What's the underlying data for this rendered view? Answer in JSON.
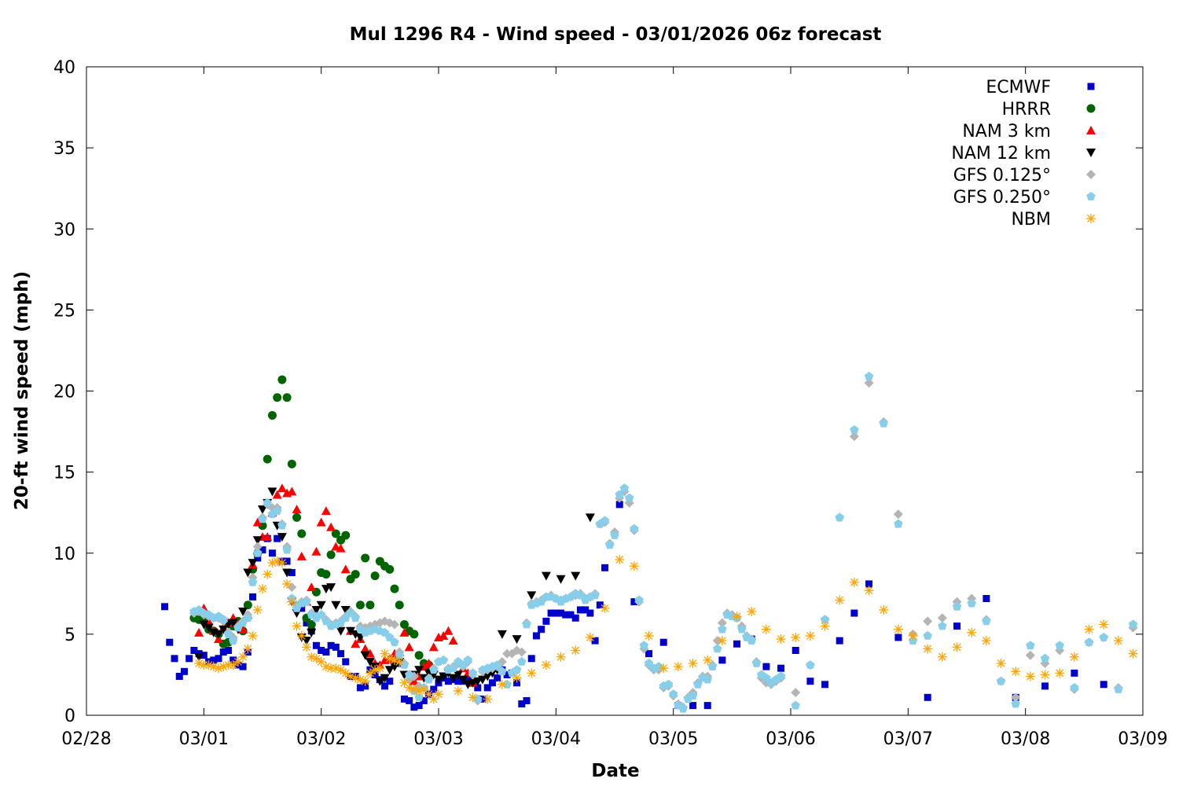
{
  "chart_data": {
    "type": "scatter",
    "title": "Mul 1296 R4 - Wind speed - 03/01/2026 06z forecast",
    "xlabel": "Date",
    "ylabel": "20-ft wind speed (mph)",
    "xlim": [
      "2026-02-28T00:00",
      "2026-03-09T00:00"
    ],
    "ylim": [
      0,
      40
    ],
    "yticks": [
      0,
      5,
      10,
      15,
      20,
      25,
      30,
      35,
      40
    ],
    "xticks": [
      {
        "t": "2026-02-28T00:00",
        "label": "02/28"
      },
      {
        "t": "2026-03-01T00:00",
        "label": "03/01"
      },
      {
        "t": "2026-03-02T00:00",
        "label": "03/02"
      },
      {
        "t": "2026-03-03T00:00",
        "label": "03/03"
      },
      {
        "t": "2026-03-04T00:00",
        "label": "03/04"
      },
      {
        "t": "2026-03-05T00:00",
        "label": "03/05"
      },
      {
        "t": "2026-03-06T00:00",
        "label": "03/06"
      },
      {
        "t": "2026-03-07T00:00",
        "label": "03/07"
      },
      {
        "t": "2026-03-08T00:00",
        "label": "03/08"
      },
      {
        "t": "2026-03-09T00:00",
        "label": "03/09"
      }
    ],
    "grid": false,
    "legend_position": "top-right",
    "series": [
      {
        "name": "ECMWF",
        "marker": "square",
        "color": "#0000cc",
        "segments": [
          {
            "start": "2026-02-28T16:00",
            "step_hours": 1,
            "values": [
              6.7,
              4.5,
              3.5,
              2.4,
              2.7,
              3.5,
              4.0,
              3.8,
              3.7,
              3.3,
              3.4,
              3.5,
              3.9,
              4.0,
              3.4,
              3.1,
              3.0,
              3.9,
              7.3,
              9.7,
              10.2,
              10.9,
              10.0,
              10.9,
              9.5,
              9.5,
              8.8,
              6.8,
              6.6,
              5.7,
              5.2,
              4.3,
              4.0,
              3.9,
              4.3,
              4.2,
              3.8,
              3.3,
              2.4,
              2.4,
              1.7,
              1.8,
              2.8,
              2.5,
              2.2,
              1.8,
              2.1,
              3.2,
              3.2,
              1.0,
              0.9,
              0.5,
              0.6,
              0.9,
              1.3,
              1.6,
              2.0,
              2.3,
              2.1,
              2.2,
              2.1,
              2.1,
              2.2,
              2.0,
              1.7,
              1.0,
              1.7,
              2.0,
              2.3,
              2.8,
              2.5,
              2.6,
              2.0,
              0.7,
              0.9,
              3.5,
              4.9,
              5.3,
              5.8,
              6.3,
              6.3,
              6.3,
              6.2,
              6.2,
              6.0,
              6.5,
              6.5,
              6.3,
              4.6,
              6.8,
              9.1
            ]
          },
          {
            "start": "2026-03-04T13:00",
            "step_hours": 3,
            "values": [
              13.0,
              7.0,
              3.8,
              4.5,
              0.6,
              0.6,
              0.6,
              3.4,
              4.4,
              4.7,
              3.0,
              2.9,
              4.0,
              2.1,
              1.9,
              4.6,
              6.3,
              8.1
            ]
          },
          {
            "start": "2026-03-06T22:00",
            "step_hours": 6,
            "values": [
              4.8,
              1.1,
              5.5,
              7.2,
              1.1,
              1.8,
              2.6,
              1.9
            ]
          }
        ]
      },
      {
        "name": "HRRR",
        "marker": "circle",
        "color": "#006400",
        "segments": [
          {
            "start": "2026-02-28T22:00",
            "step_hours": 1,
            "values": [
              6.0,
              5.9,
              5.8,
              5.3,
              5.2,
              5.0,
              4.4,
              4.5,
              5.5,
              5.8,
              5.2,
              6.8,
              9.0,
              10.0,
              11.7,
              15.8,
              18.5,
              19.6,
              20.7,
              19.6,
              15.5,
              12.2,
              11.2,
              6.0,
              5.6,
              7.6,
              8.8,
              8.7,
              9.9,
              11.2,
              10.8,
              11.1,
              8.4,
              8.7,
              6.8,
              9.7,
              6.8,
              8.6,
              9.5,
              9.2,
              9.0,
              7.8,
              6.8,
              5.6,
              5.2,
              5.0,
              3.7,
              3.2,
              3.1
            ]
          }
        ]
      },
      {
        "name": "NAM 3 km",
        "marker": "triangle-up",
        "color": "#ff0000",
        "segments": [
          {
            "start": "2026-02-28T23:00",
            "step_hours": 1,
            "values": [
              5.1,
              6.6,
              5.8,
              5.2,
              4.7,
              5.4,
              5.7,
              6.0,
              5.6,
              5.3,
              6.2,
              9.3,
              11.9,
              11.0,
              11.0,
              12.5,
              13.6,
              14.0,
              13.7,
              13.8,
              12.7,
              9.8,
              7.0,
              7.9,
              10.1,
              11.9,
              12.6,
              11.6,
              10.4,
              10.3,
              9.0,
              5.2,
              4.4,
              4.7,
              4.1,
              3.8,
              3.2,
              3.1,
              3.4,
              3.5,
              3.8,
              3.9,
              5.1,
              4.2,
              2.1,
              2.4,
              3.0,
              3.2,
              4.2,
              4.8,
              4.9,
              5.2,
              4.6,
              3.3,
              2.9,
              2.6,
              2.0
            ]
          }
        ]
      },
      {
        "name": "NAM 12 km",
        "marker": "triangle-down",
        "color": "#000000",
        "segments": [
          {
            "start": "2026-02-28T23:00",
            "step_hours": 1,
            "values": [
              3.6,
              5.6,
              5.4,
              5.1,
              5.0,
              5.3,
              5.6,
              5.7,
              5.3,
              6.4,
              8.8,
              9.4,
              10.8,
              12.7,
              13.1,
              13.8,
              11.7,
              11.0,
              8.8,
              7.0,
              6.3,
              4.8,
              4.6,
              5.1,
              6.5,
              6.8,
              7.8,
              7.9,
              6.8,
              5.2,
              6.5,
              5.2,
              5.0,
              4.8,
              3.7,
              3.3,
              3.0,
              2.1,
              2.3,
              2.8,
              3.0,
              3.3,
              2.5,
              2.3,
              2.5,
              2.8,
              2.3,
              2.6,
              2.5,
              2.2,
              2.4,
              2.6,
              2.3,
              2.5,
              2.2,
              1.9,
              2.0,
              2.1,
              2.2,
              2.4,
              2.6,
              2.8
            ]
          },
          {
            "start": "2026-03-03T13:00",
            "step_hours": 3,
            "values": [
              5.0,
              4.7,
              7.4,
              8.6,
              8.4,
              8.6,
              12.2
            ]
          }
        ]
      },
      {
        "name": "GFS 0.125°",
        "marker": "diamond",
        "color": "#b4b4b4",
        "segments": [
          {
            "start": "2026-02-28T22:00",
            "step_hours": 1,
            "values": [
              6.3,
              6.4,
              6.2,
              6.1,
              6.0,
              6.0,
              5.8,
              5.1,
              4.8,
              5.5,
              5.8,
              6.2,
              8.5,
              10.4,
              12.2,
              13.0,
              12.8,
              12.8,
              11.8,
              10.4,
              7.9,
              6.8,
              7.0,
              7.1,
              6.3,
              6.1,
              6.2,
              5.9,
              5.6,
              5.7,
              5.8,
              6.1,
              6.4,
              6.1,
              5.5,
              5.4,
              5.5,
              5.6,
              5.7,
              5.8,
              5.7,
              5.6,
              3.9,
              3.2,
              2.2,
              2.4,
              1.8,
              1.7,
              2.3,
              2.9,
              3.3,
              3.4,
              2.9,
              3.0,
              3.2,
              3.0,
              3.3,
              2.5,
              0.9,
              2.7,
              2.8,
              2.9,
              3.0,
              3.3,
              3.8,
              3.8,
              4.0,
              3.9,
              5.7,
              6.9,
              7.0,
              7.1,
              7.3,
              7.4,
              7.2,
              7.1,
              7.2,
              7.3,
              7.4,
              7.5,
              7.2,
              7.3,
              7.5,
              11.8,
              11.9,
              10.6,
              11.3,
              13.4,
              13.8,
              13.1,
              11.4,
              7.0,
              4.1,
              3.1,
              2.8,
              2.8,
              1.7,
              1.8,
              1.2,
              0.7,
              0.5,
              1.1,
              1.4,
              2.0,
              2.4,
              2.4,
              3.1,
              4.6,
              5.7,
              6.3,
              6.2,
              6.0,
              5.5,
              4.9,
              4.7,
              3.3,
              2.3,
              2.0,
              1.9,
              2.1,
              2.3
            ]
          },
          {
            "start": "2026-03-06T01:00",
            "step_hours": 3,
            "values": [
              1.4,
              3.1,
              5.9,
              12.2,
              17.2,
              20.5,
              18.1,
              12.4,
              5.0,
              5.8,
              6.0,
              7.0,
              7.2,
              5.9,
              2.1,
              1.1,
              3.7,
              3.2,
              4.0,
              1.6,
              4.5,
              4.8,
              1.7,
              5.4
            ]
          }
        ]
      },
      {
        "name": "GFS 0.250°",
        "marker": "pentagon",
        "color": "#87ceeb",
        "segments": [
          {
            "start": "2026-02-28T22:00",
            "step_hours": 1,
            "values": [
              6.4,
              6.5,
              6.3,
              6.2,
              6.0,
              6.1,
              5.9,
              5.0,
              4.6,
              5.4,
              5.7,
              6.0,
              8.2,
              10.0,
              12.1,
              13.1,
              12.4,
              12.6,
              11.7,
              10.2,
              7.2,
              6.6,
              6.9,
              7.0,
              6.2,
              6.0,
              6.2,
              5.8,
              5.5,
              5.6,
              5.7,
              6.0,
              6.3,
              6.0,
              5.3,
              5.1,
              5.2,
              5.3,
              5.2,
              5.1,
              4.8,
              4.5,
              3.7,
              3.1,
              2.5,
              1.5,
              1.1,
              1.7,
              2.2,
              2.8,
              3.3,
              3.4,
              2.8,
              2.9,
              3.3,
              3.1,
              3.4,
              2.6,
              1.0,
              2.8,
              2.9,
              3.0,
              3.1,
              2.7,
              1.9,
              2.6,
              2.8,
              3.3,
              5.6,
              6.8,
              6.9,
              7.0,
              7.3,
              7.3,
              7.2,
              7.0,
              7.2,
              7.3,
              7.5,
              7.4,
              7.1,
              7.3,
              7.4,
              11.8,
              12.0,
              10.5,
              11.1,
              13.6,
              14.0,
              13.4,
              11.5,
              7.1,
              4.3,
              3.2,
              2.9,
              3.0,
              1.8,
              1.9,
              1.3,
              0.6,
              0.4,
              1.0,
              1.2,
              1.9,
              2.3,
              2.2,
              3.0,
              4.1,
              5.3,
              6.2,
              6.1,
              6.0,
              5.3,
              4.8,
              4.6,
              3.2,
              2.5,
              2.3,
              2.0,
              2.2,
              2.4
            ]
          },
          {
            "start": "2026-03-06T01:00",
            "step_hours": 3,
            "values": [
              0.6,
              3.1,
              5.9,
              12.2,
              17.6,
              20.9,
              18.0,
              11.8,
              4.6,
              4.9,
              5.5,
              6.7,
              6.9,
              5.8,
              2.1,
              0.7,
              4.3,
              3.5,
              4.3,
              1.7,
              4.5,
              4.8,
              1.6,
              5.6
            ]
          }
        ]
      },
      {
        "name": "NBM",
        "marker": "star",
        "color": "#ffa500",
        "segments": [
          {
            "start": "2026-02-28T23:00",
            "step_hours": 1,
            "values": [
              3.2,
              3.1,
              3.1,
              3.0,
              2.9,
              3.0,
              3.1,
              3.1,
              3.3,
              3.6,
              4.1,
              4.9,
              6.5,
              7.8,
              8.7,
              9.4,
              9.5,
              9.4,
              8.1,
              7.0,
              5.5,
              4.9,
              4.2,
              3.6,
              3.5,
              3.3,
              3.0,
              2.9,
              2.9,
              2.8,
              2.6,
              2.4,
              2.3,
              2.2,
              2.1,
              2.6,
              2.8,
              2.9,
              3.8,
              3.5,
              3.4,
              3.3,
              2.0,
              1.7,
              1.6,
              1.5,
              1.6,
              1.3,
              1.0,
              1.3
            ]
          },
          {
            "start": "2026-03-03T04:00",
            "step_hours": 3,
            "values": [
              1.5,
              1.1,
              1.0,
              1.9,
              2.3,
              2.6,
              3.1,
              3.6,
              4.0,
              4.8,
              6.6,
              9.6,
              9.2,
              4.9,
              2.9,
              3.0,
              3.2,
              3.4,
              4.6,
              6.1,
              6.4,
              5.3,
              4.7,
              4.8,
              4.9,
              5.5,
              7.1,
              8.2,
              7.7,
              6.5,
              5.3,
              4.9,
              4.1,
              3.6,
              4.2,
              5.1,
              4.6,
              3.2,
              2.7,
              2.4,
              2.5,
              2.6,
              3.6,
              5.3,
              5.6,
              4.6,
              3.8
            ]
          }
        ]
      }
    ]
  }
}
